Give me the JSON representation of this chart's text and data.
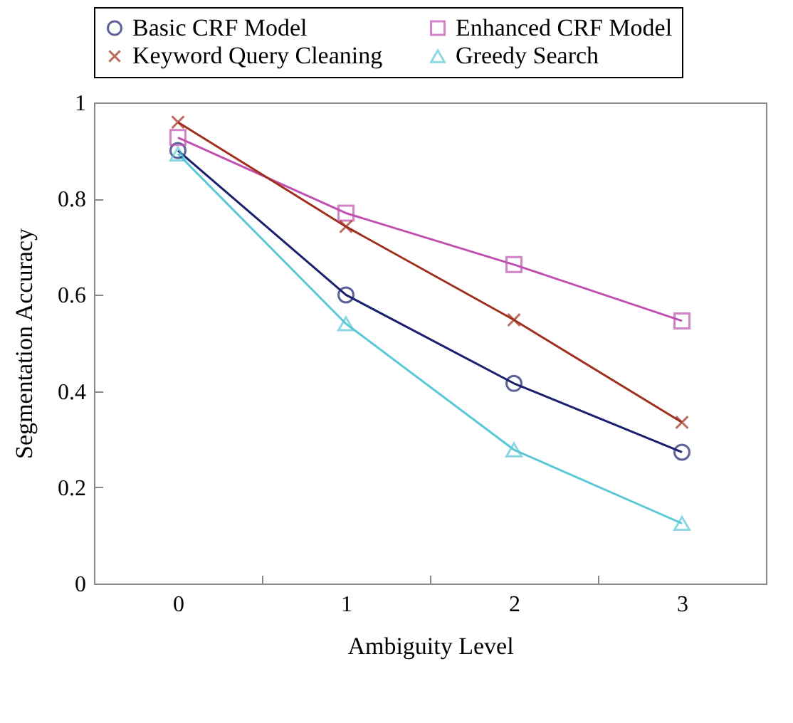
{
  "chart_data": {
    "type": "line",
    "xlabel": "Ambiguity Level",
    "ylabel": "Segmentation Accuracy",
    "categories": [
      "0",
      "1",
      "2",
      "3"
    ],
    "ylim": [
      0,
      1
    ],
    "yticks": [
      0,
      0.2,
      0.4,
      0.6,
      0.8,
      1
    ],
    "grid": false,
    "legend": "top",
    "line_style": "solid",
    "series": [
      {
        "name": "Basic CRF Model",
        "color": "#1a1f6e",
        "marker": "circle",
        "values": [
          0.9,
          0.6,
          0.416,
          0.273
        ]
      },
      {
        "name": "Enhanced CRF Model",
        "color": "#c050b0",
        "marker": "square",
        "values": [
          0.927,
          0.77,
          0.663,
          0.546
        ]
      },
      {
        "name": "Keyword Query Cleaning",
        "color": "#a0301e",
        "marker": "cross",
        "values": [
          0.959,
          0.742,
          0.548,
          0.335
        ]
      },
      {
        "name": "Greedy Search",
        "color": "#5bc8d8",
        "marker": "triangle",
        "values": [
          0.893,
          0.54,
          0.278,
          0.125
        ]
      }
    ]
  }
}
